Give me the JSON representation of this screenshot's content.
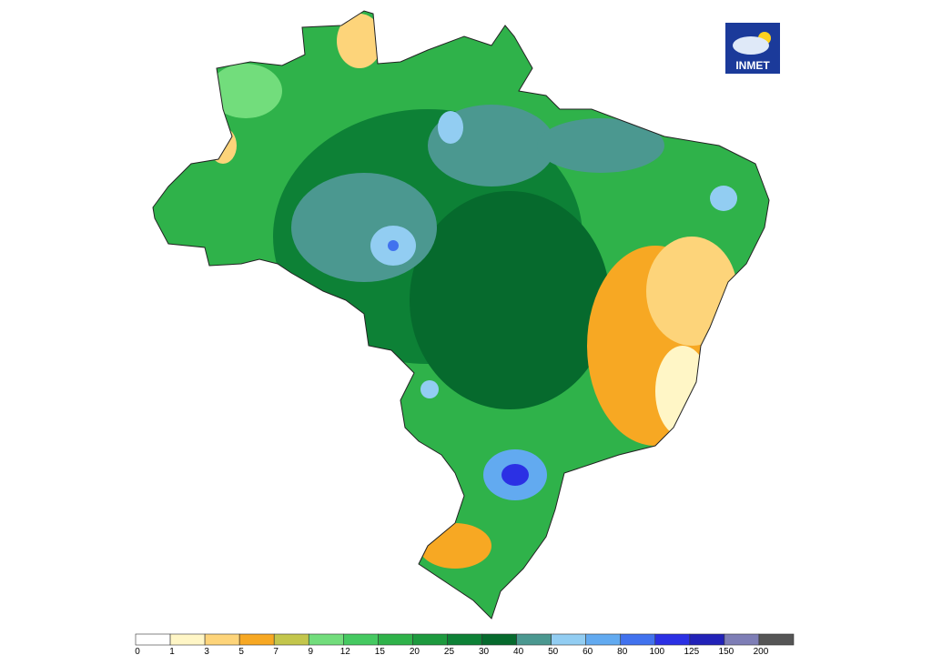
{
  "logo": {
    "text": "INMET"
  },
  "legend": {
    "labels": [
      0,
      1,
      3,
      5,
      7,
      9,
      12,
      15,
      20,
      25,
      30,
      40,
      50,
      60,
      80,
      100,
      125,
      150,
      200
    ],
    "colors": [
      "#ffffff",
      "#fff6c6",
      "#fdd47a",
      "#f7a823",
      "#c3c64c",
      "#72dd7c",
      "#45c961",
      "#2fb24a",
      "#1d9a3e",
      "#0d8136",
      "#066a2d",
      "#4b9890",
      "#92cdf2",
      "#62aaf0",
      "#4172ee",
      "#2b30e4",
      "#2222b8",
      "#7e7eb6",
      "#555555"
    ]
  }
}
